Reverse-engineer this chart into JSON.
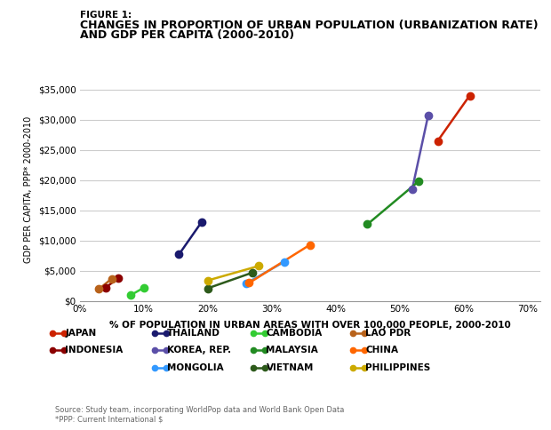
{
  "title_figure": "FIGURE 1:",
  "title_main_line1": "CHANGES IN PROPORTION OF URBAN POPULATION (URBANIZATION RATE)",
  "title_main_line2": "AND GDP PER CAPITA (2000-2010)",
  "xlabel": "% OF POPULATION IN URBAN AREAS WITH OVER 100,000 PEOPLE, 2000-2010",
  "ylabel": "GDP PER CAPITA, PPP* 2000-2010",
  "source": "Source: Study team, incorporating WorldPop data and World Bank Open Data\n*PPP: Current International $",
  "xlim": [
    0.0,
    0.72
  ],
  "ylim": [
    0,
    37000
  ],
  "yticks": [
    0,
    5000,
    10000,
    15000,
    20000,
    25000,
    30000,
    35000
  ],
  "xticks": [
    0.0,
    0.1,
    0.2,
    0.3,
    0.4,
    0.5,
    0.6,
    0.7
  ],
  "countries": [
    {
      "name": "JAPAN",
      "color": "#CC2200",
      "x": [
        0.56,
        0.61
      ],
      "y": [
        26500,
        34000
      ]
    },
    {
      "name": "INDONESIA",
      "color": "#8B0000",
      "x": [
        0.04,
        0.06
      ],
      "y": [
        2200,
        3800
      ]
    },
    {
      "name": "THAILAND",
      "color": "#1a1a6e",
      "x": [
        0.155,
        0.19
      ],
      "y": [
        7700,
        13000
      ]
    },
    {
      "name": "KOREA, REP.",
      "color": "#5b4fa8",
      "x": [
        0.52,
        0.545
      ],
      "y": [
        18500,
        30700
      ]
    },
    {
      "name": "MONGOLIA",
      "color": "#3399FF",
      "x": [
        0.26,
        0.32
      ],
      "y": [
        2900,
        6500
      ]
    },
    {
      "name": "CAMBODIA",
      "color": "#33CC33",
      "x": [
        0.08,
        0.1
      ],
      "y": [
        1000,
        2200
      ]
    },
    {
      "name": "MALAYSIA",
      "color": "#228B22",
      "x": [
        0.45,
        0.53
      ],
      "y": [
        12700,
        19800
      ]
    },
    {
      "name": "VIETNAM",
      "color": "#2d5a1b",
      "x": [
        0.2,
        0.27
      ],
      "y": [
        2100,
        4700
      ]
    },
    {
      "name": "LAO PDR",
      "color": "#b8621a",
      "x": [
        0.03,
        0.05
      ],
      "y": [
        2000,
        3700
      ]
    },
    {
      "name": "CHINA",
      "color": "#FF6600",
      "x": [
        0.265,
        0.36
      ],
      "y": [
        3000,
        9300
      ]
    },
    {
      "name": "PHILIPPINES",
      "color": "#CCAA00",
      "x": [
        0.2,
        0.28
      ],
      "y": [
        3400,
        5800
      ]
    }
  ],
  "legend_order": [
    [
      "JAPAN",
      "#CC2200"
    ],
    [
      "THAILAND",
      "#1a1a6e"
    ],
    [
      "CAMBODIA",
      "#33CC33"
    ],
    [
      "LAO PDR",
      "#b8621a"
    ],
    [
      "INDONESIA",
      "#8B0000"
    ],
    [
      "KOREA, REP.",
      "#5b4fa8"
    ],
    [
      "MALAYSIA",
      "#228B22"
    ],
    [
      "CHINA",
      "#FF6600"
    ],
    [
      "MONGOLIA",
      "#3399FF"
    ],
    [
      "VIETNAM",
      "#2d5a1b"
    ],
    [
      "PHILIPPINES",
      "#CCAA00"
    ]
  ],
  "bg_color": "#ffffff",
  "grid_color": "#cccccc",
  "marker_size": 6,
  "line_width": 1.8
}
